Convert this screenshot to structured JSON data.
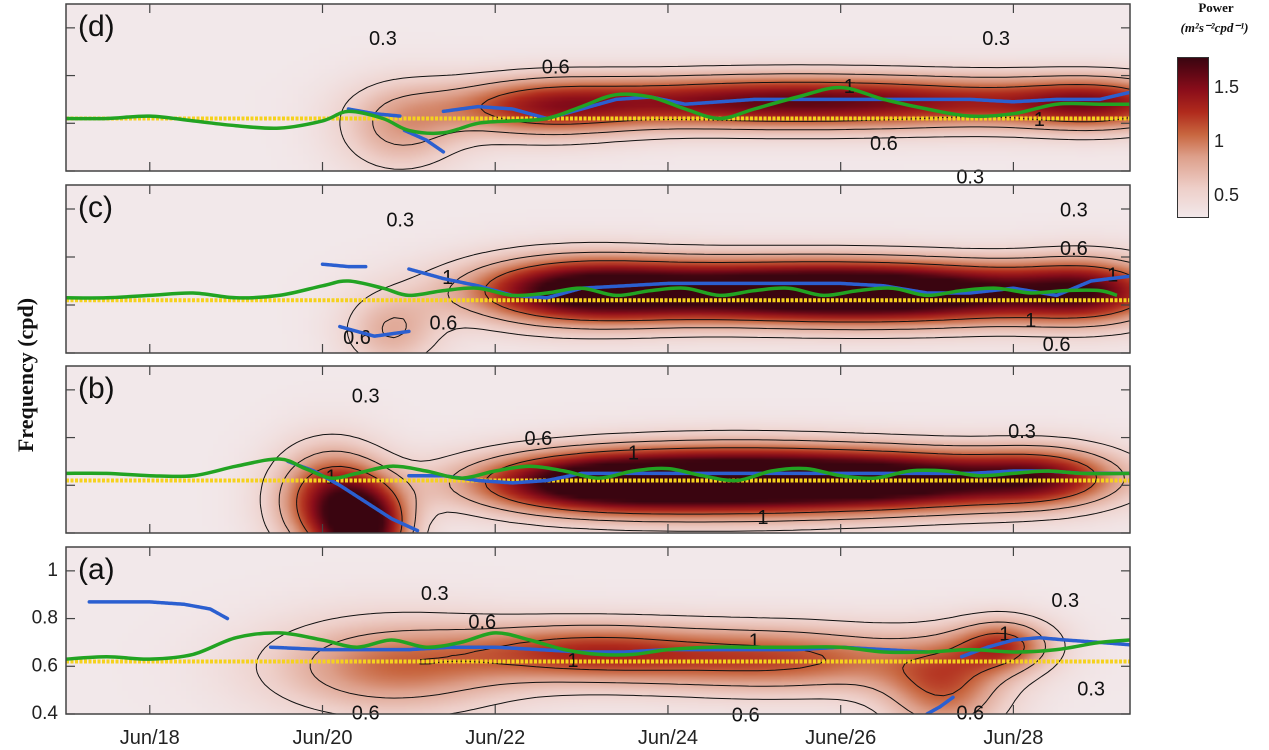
{
  "chart_data": {
    "type": "heatmap",
    "description": "Four stacked time-frequency power spectra panels with contour lines and overlaid frequency tracks",
    "ylabel": "Frequency (cpd)",
    "xlabel": "",
    "x_tick_labels": [
      "Jun/18",
      "Jun/20",
      "Jun/22",
      "Jun/24",
      "June/26",
      "Jun/28"
    ],
    "x_tick_days": [
      18,
      20,
      22,
      24,
      26,
      28
    ],
    "xlim_days": [
      17.03,
      29.35
    ],
    "y_tick_labels": [
      "0.4",
      "0.6",
      "0.8",
      "1"
    ],
    "y_tick_values": [
      0.4,
      0.6,
      0.8,
      1.0
    ],
    "ylim": [
      0.4,
      1.1
    ],
    "colorbar": {
      "title": "Power",
      "units": "(m²s⁻²cpd⁻¹)",
      "ticks": [
        "0.5",
        "1",
        "1.5"
      ],
      "tick_values": [
        0.5,
        1.0,
        1.5
      ],
      "range": [
        0.3,
        1.8
      ],
      "colors": [
        "#f2e8ea",
        "#eecfc9",
        "#dd9f8a",
        "#c8663f",
        "#b02a1c",
        "#8a0d1a",
        "#5a0714",
        "#3a0510"
      ]
    },
    "contour_levels": [
      0.3,
      0.6,
      1
    ],
    "series_colors": {
      "reference_line": "#f5d21e",
      "green_track": "#22a322",
      "blue_track": "#2b5fd0",
      "contour": "#111111"
    },
    "panels": [
      {
        "label": "(d)",
        "reference_freq": 0.62,
        "blobs": [
          {
            "day": 20.9,
            "freq": 0.58,
            "sx": 0.5,
            "sy": 0.13,
            "power": 0.6
          },
          {
            "day": 22.5,
            "freq": 0.66,
            "sx": 0.8,
            "sy": 0.09,
            "power": 0.85
          },
          {
            "day": 24.5,
            "freq": 0.69,
            "sx": 1.6,
            "sy": 0.08,
            "power": 1.05
          },
          {
            "day": 27.0,
            "freq": 0.69,
            "sx": 1.8,
            "sy": 0.08,
            "power": 1.05
          },
          {
            "day": 29.0,
            "freq": 0.68,
            "sx": 0.7,
            "sy": 0.08,
            "power": 0.9
          }
        ],
        "contour_labels": [
          {
            "text": "0.3",
            "day": 20.7,
            "freq": 0.95
          },
          {
            "text": "0.6",
            "day": 22.7,
            "freq": 0.83
          },
          {
            "text": "1",
            "day": 26.1,
            "freq": 0.75
          },
          {
            "text": "1",
            "day": 28.3,
            "freq": 0.61
          },
          {
            "text": "0.6",
            "day": 26.5,
            "freq": 0.51
          },
          {
            "text": "0.3",
            "day": 27.8,
            "freq": 0.95
          },
          {
            "text": "0.3",
            "day": 27.5,
            "freq": 0.37
          }
        ],
        "green_track": {
          "days": [
            17.03,
            17.5,
            18,
            18.5,
            19,
            19.5,
            20,
            20.3,
            20.7,
            21.0,
            21.4,
            21.8,
            22.2,
            22.6,
            23.0,
            23.4,
            23.8,
            24.2,
            24.6,
            25.0,
            25.5,
            26.0,
            26.5,
            27.0,
            27.5,
            28.0,
            28.5,
            29.0,
            29.35
          ],
          "freqs": [
            0.62,
            0.62,
            0.63,
            0.61,
            0.59,
            0.58,
            0.61,
            0.65,
            0.62,
            0.57,
            0.56,
            0.6,
            0.61,
            0.62,
            0.67,
            0.72,
            0.71,
            0.66,
            0.62,
            0.66,
            0.71,
            0.75,
            0.7,
            0.66,
            0.63,
            0.64,
            0.68,
            0.68,
            0.68
          ]
        },
        "blue_track_segments": [
          {
            "days": [
              20.3,
              20.6,
              20.9
            ],
            "freqs": [
              0.66,
              0.64,
              0.63
            ]
          },
          {
            "days": [
              20.95,
              21.2,
              21.4
            ],
            "freqs": [
              0.57,
              0.53,
              0.48
            ]
          },
          {
            "days": [
              21.4,
              21.8,
              22.2,
              22.6,
              23.0,
              23.4,
              23.8,
              24.2,
              24.6,
              25.0,
              25.5,
              26.0,
              26.5,
              27.0,
              27.5,
              28.0,
              28.5,
              29.0,
              29.35
            ],
            "freqs": [
              0.65,
              0.67,
              0.66,
              0.62,
              0.66,
              0.7,
              0.71,
              0.68,
              0.69,
              0.7,
              0.7,
              0.7,
              0.7,
              0.7,
              0.7,
              0.69,
              0.7,
              0.7,
              0.73
            ]
          }
        ]
      },
      {
        "label": "(c)",
        "reference_freq": 0.62,
        "blobs": [
          {
            "day": 20.8,
            "freq": 0.49,
            "sx": 0.4,
            "sy": 0.11,
            "power": 0.55
          },
          {
            "day": 22.9,
            "freq": 0.66,
            "sx": 0.9,
            "sy": 0.1,
            "power": 1.35
          },
          {
            "day": 24.8,
            "freq": 0.66,
            "sx": 1.5,
            "sy": 0.09,
            "power": 1.55
          },
          {
            "day": 27.0,
            "freq": 0.65,
            "sx": 1.5,
            "sy": 0.09,
            "power": 1.7
          },
          {
            "day": 28.9,
            "freq": 0.66,
            "sx": 0.6,
            "sy": 0.1,
            "power": 0.95
          }
        ],
        "contour_labels": [
          {
            "text": "0.3",
            "day": 20.9,
            "freq": 0.95
          },
          {
            "text": "0.6",
            "day": 28.7,
            "freq": 0.83
          },
          {
            "text": "1",
            "day": 29.15,
            "freq": 0.72
          },
          {
            "text": "1",
            "day": 28.2,
            "freq": 0.53
          },
          {
            "text": "0.6",
            "day": 28.5,
            "freq": 0.43
          },
          {
            "text": "0.3",
            "day": 28.7,
            "freq": 0.99
          },
          {
            "text": "0.6",
            "day": 20.4,
            "freq": 0.46
          },
          {
            "text": "0.6",
            "day": 21.4,
            "freq": 0.52
          },
          {
            "text": "1",
            "day": 21.45,
            "freq": 0.71
          }
        ],
        "green_track": {
          "days": [
            17.03,
            17.5,
            18,
            18.5,
            19,
            19.5,
            20,
            20.3,
            20.7,
            21.0,
            21.4,
            21.8,
            22.2,
            22.6,
            23.0,
            23.4,
            23.8,
            24.2,
            24.6,
            25.0,
            25.4,
            25.8,
            26.2,
            26.6,
            27.0,
            27.4,
            27.8,
            28.2,
            28.6,
            29.0,
            29.2
          ],
          "freqs": [
            0.63,
            0.63,
            0.64,
            0.65,
            0.63,
            0.64,
            0.68,
            0.7,
            0.67,
            0.64,
            0.66,
            0.67,
            0.64,
            0.65,
            0.67,
            0.64,
            0.66,
            0.67,
            0.64,
            0.66,
            0.67,
            0.64,
            0.66,
            0.67,
            0.64,
            0.66,
            0.67,
            0.65,
            0.66,
            0.66,
            0.64
          ]
        },
        "blue_track_segments": [
          {
            "days": [
              20.0,
              20.3,
              20.5
            ],
            "freqs": [
              0.77,
              0.76,
              0.76
            ]
          },
          {
            "days": [
              20.2,
              20.6,
              21.0
            ],
            "freqs": [
              0.51,
              0.47,
              0.49
            ]
          },
          {
            "days": [
              21.0,
              21.4,
              21.8,
              22.2,
              22.6,
              23.0,
              23.5,
              24.0,
              24.5,
              25.0,
              25.5,
              26.0,
              26.5,
              27.0,
              27.5,
              28.0,
              28.5,
              28.9,
              29.35
            ],
            "freqs": [
              0.75,
              0.71,
              0.68,
              0.64,
              0.63,
              0.67,
              0.68,
              0.69,
              0.69,
              0.69,
              0.69,
              0.69,
              0.68,
              0.65,
              0.65,
              0.67,
              0.64,
              0.7,
              0.72
            ]
          }
        ]
      },
      {
        "label": "(b)",
        "reference_freq": 0.62,
        "blobs": [
          {
            "day": 20.1,
            "freq": 0.54,
            "sx": 0.45,
            "sy": 0.15,
            "power": 1.3
          },
          {
            "day": 20.5,
            "freq": 0.42,
            "sx": 0.35,
            "sy": 0.12,
            "power": 1.5
          },
          {
            "day": 23.0,
            "freq": 0.61,
            "sx": 1.0,
            "sy": 0.09,
            "power": 1.55
          },
          {
            "day": 24.7,
            "freq": 0.62,
            "sx": 1.2,
            "sy": 0.1,
            "power": 1.8
          },
          {
            "day": 26.8,
            "freq": 0.62,
            "sx": 1.3,
            "sy": 0.09,
            "power": 1.75
          },
          {
            "day": 28.4,
            "freq": 0.64,
            "sx": 0.6,
            "sy": 0.09,
            "power": 0.8
          }
        ],
        "contour_labels": [
          {
            "text": "0.3",
            "day": 20.5,
            "freq": 0.97
          },
          {
            "text": "0.6",
            "day": 22.5,
            "freq": 0.79
          },
          {
            "text": "1",
            "day": 23.6,
            "freq": 0.73
          },
          {
            "text": "1",
            "day": 20.1,
            "freq": 0.63
          },
          {
            "text": "1",
            "day": 25.1,
            "freq": 0.46
          },
          {
            "text": "0.3",
            "day": 28.1,
            "freq": 0.82
          }
        ],
        "green_track": {
          "days": [
            17.03,
            17.5,
            18,
            18.5,
            19,
            19.5,
            19.8,
            20.1,
            20.4,
            20.8,
            21.2,
            21.6,
            22.0,
            22.4,
            22.8,
            23.2,
            23.6,
            24.0,
            24.4,
            24.8,
            25.2,
            25.6,
            26.0,
            26.4,
            26.8,
            27.2,
            27.6,
            28.0,
            28.4,
            28.8,
            29.35
          ],
          "freqs": [
            0.65,
            0.65,
            0.64,
            0.64,
            0.68,
            0.71,
            0.67,
            0.63,
            0.65,
            0.68,
            0.66,
            0.63,
            0.66,
            0.68,
            0.66,
            0.63,
            0.66,
            0.67,
            0.64,
            0.62,
            0.66,
            0.67,
            0.64,
            0.63,
            0.66,
            0.66,
            0.64,
            0.65,
            0.66,
            0.65,
            0.65
          ]
        },
        "blue_track_segments": [
          {
            "days": [
              19.6,
              19.9,
              20.2,
              20.5,
              20.8,
              21.1
            ],
            "freqs": [
              0.7,
              0.66,
              0.6,
              0.53,
              0.46,
              0.41
            ]
          },
          {
            "days": [
              21.0,
              21.4,
              21.8,
              22.2,
              22.6,
              23.0,
              23.5,
              24.0,
              24.5,
              25.0,
              25.5,
              26.0,
              26.5,
              27.0,
              27.5,
              28.0,
              28.4,
              28.8,
              29.35
            ],
            "freqs": [
              0.64,
              0.64,
              0.62,
              0.61,
              0.62,
              0.65,
              0.65,
              0.65,
              0.65,
              0.65,
              0.65,
              0.65,
              0.65,
              0.65,
              0.65,
              0.66,
              0.66,
              0.65,
              0.65
            ]
          }
        ]
      },
      {
        "label": "(a)",
        "reference_freq": 0.62,
        "blobs": [
          {
            "day": 20.8,
            "freq": 0.6,
            "sx": 1.0,
            "sy": 0.14,
            "power": 0.85
          },
          {
            "day": 23.0,
            "freq": 0.66,
            "sx": 1.0,
            "sy": 0.09,
            "power": 0.95
          },
          {
            "day": 25.3,
            "freq": 0.63,
            "sx": 1.3,
            "sy": 0.1,
            "power": 1.0
          },
          {
            "day": 27.2,
            "freq": 0.5,
            "sx": 0.5,
            "sy": 0.14,
            "power": 0.85
          },
          {
            "day": 27.9,
            "freq": 0.69,
            "sx": 0.4,
            "sy": 0.08,
            "power": 0.95
          }
        ],
        "contour_labels": [
          {
            "text": "0.3",
            "day": 21.3,
            "freq": 0.9
          },
          {
            "text": "0.6",
            "day": 21.85,
            "freq": 0.78
          },
          {
            "text": "1",
            "day": 22.9,
            "freq": 0.62
          },
          {
            "text": "1",
            "day": 25.0,
            "freq": 0.7
          },
          {
            "text": "1",
            "day": 27.9,
            "freq": 0.73
          },
          {
            "text": "0.3",
            "day": 28.6,
            "freq": 0.87
          },
          {
            "text": "0.3",
            "day": 28.9,
            "freq": 0.5
          },
          {
            "text": "0.6",
            "day": 20.5,
            "freq": 0.4
          },
          {
            "text": "0.6",
            "day": 24.9,
            "freq": 0.39
          },
          {
            "text": "0.6",
            "day": 27.5,
            "freq": 0.4
          }
        ],
        "green_track": {
          "days": [
            17.03,
            17.5,
            18,
            18.5,
            19,
            19.5,
            20,
            20.4,
            20.8,
            21.2,
            21.6,
            22.0,
            22.4,
            22.8,
            23.2,
            23.6,
            24.0,
            24.5,
            25.0,
            25.5,
            26.0,
            26.5,
            27.0,
            27.5,
            28.0,
            28.5,
            29.0,
            29.35
          ],
          "freqs": [
            0.63,
            0.64,
            0.63,
            0.65,
            0.72,
            0.74,
            0.71,
            0.68,
            0.71,
            0.68,
            0.7,
            0.74,
            0.71,
            0.67,
            0.65,
            0.65,
            0.67,
            0.68,
            0.68,
            0.68,
            0.68,
            0.66,
            0.66,
            0.67,
            0.66,
            0.67,
            0.7,
            0.71
          ]
        },
        "blue_track_segments": [
          {
            "days": [
              17.3,
              17.6,
              18.0,
              18.4,
              18.7,
              18.9
            ],
            "freqs": [
              0.87,
              0.87,
              0.87,
              0.86,
              0.84,
              0.8
            ]
          },
          {
            "days": [
              19.4,
              20.0,
              20.5,
              21.0,
              21.5,
              22.0,
              22.5,
              23.0,
              23.5,
              24.0,
              24.5,
              25.0,
              25.5,
              26.0,
              26.5,
              27.0
            ],
            "freqs": [
              0.68,
              0.67,
              0.67,
              0.67,
              0.68,
              0.68,
              0.67,
              0.66,
              0.66,
              0.67,
              0.67,
              0.67,
              0.67,
              0.68,
              0.67,
              0.66
            ]
          },
          {
            "days": [
              27.4,
              27.7,
              28.0,
              28.3,
              28.6,
              29.0,
              29.35
            ],
            "freqs": [
              0.64,
              0.68,
              0.71,
              0.72,
              0.71,
              0.7,
              0.69
            ]
          },
          {
            "days": [
              27.0,
              27.15,
              27.3
            ],
            "freqs": [
              0.4,
              0.43,
              0.47
            ]
          }
        ]
      }
    ]
  }
}
